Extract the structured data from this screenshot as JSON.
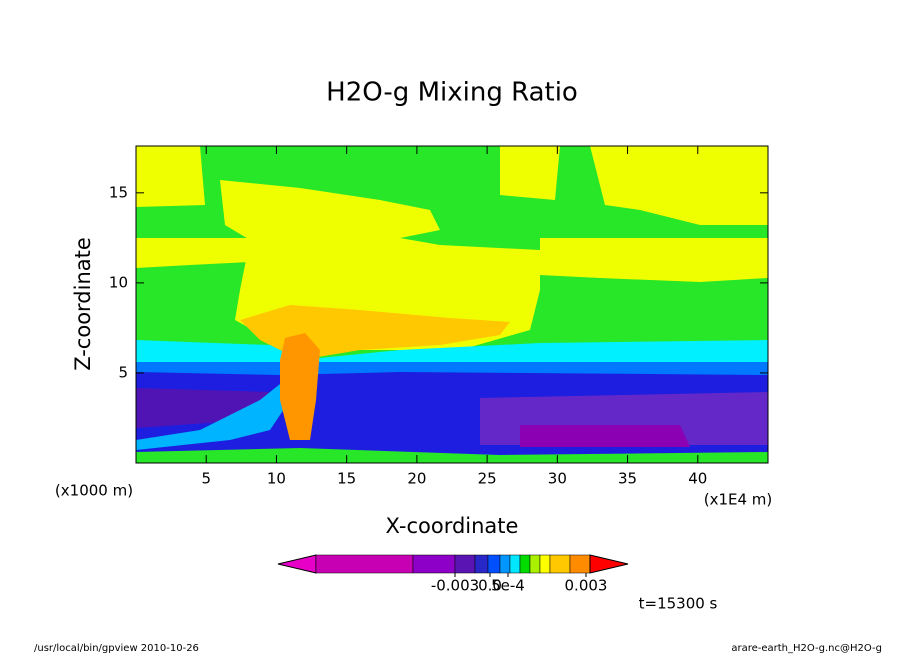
{
  "chart_data": {
    "type": "contour",
    "title": "H2O-g Mixing Ratio",
    "x_label": "X-coordinate",
    "y_label": "Z-coordinate",
    "x_unit_left": "(x1000 m)",
    "x_unit_right": "(x1E4 m)",
    "xlim": [
      0,
      45
    ],
    "xticks": [
      5,
      10,
      15,
      20,
      25,
      30,
      35,
      40
    ],
    "ylim": [
      0,
      17.6
    ],
    "yticks": [
      5,
      10,
      15
    ],
    "colorbar": {
      "colors": [
        "#c800b4",
        "#8c00c8",
        "#5a14b4",
        "#2828c8",
        "#0050ff",
        "#0096ff",
        "#00e6ff",
        "#00dc00",
        "#aaf000",
        "#ffff00",
        "#ffc800",
        "#ff8c00"
      ],
      "under_color": "#e600c8",
      "over_color": "#ff0000",
      "ticks": [
        -0.003,
        {
          "value": 0,
          "label": "0.0"
        },
        {
          "value": 0.0005,
          "label": "5e-4"
        },
        0.003
      ]
    },
    "time_label": "t=15300 s",
    "footer_left": "/usr/local/bin/gpview  2010-10-26",
    "footer_right": "arare-earth_H2O-g.nc@H2O-g"
  }
}
